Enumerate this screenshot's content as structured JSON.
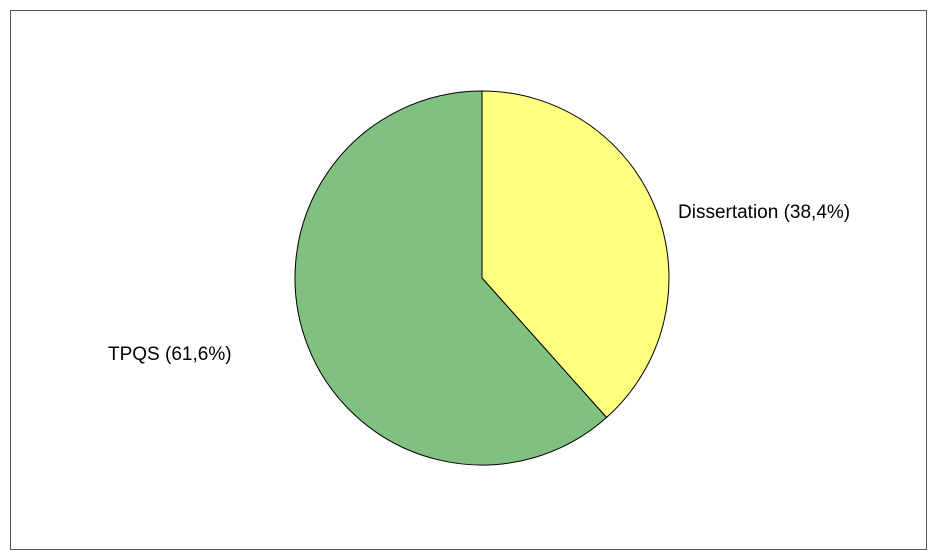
{
  "chart_data": {
    "type": "pie",
    "title": "",
    "slices": [
      {
        "label": "Dissertation (38,4%)",
        "value": 38.4,
        "color": "#ffff80"
      },
      {
        "label": "TPQS (61,6%)",
        "value": 61.6,
        "color": "#80c080"
      }
    ],
    "start_angle_deg": 0,
    "direction": "clockwise",
    "legend": "none"
  }
}
